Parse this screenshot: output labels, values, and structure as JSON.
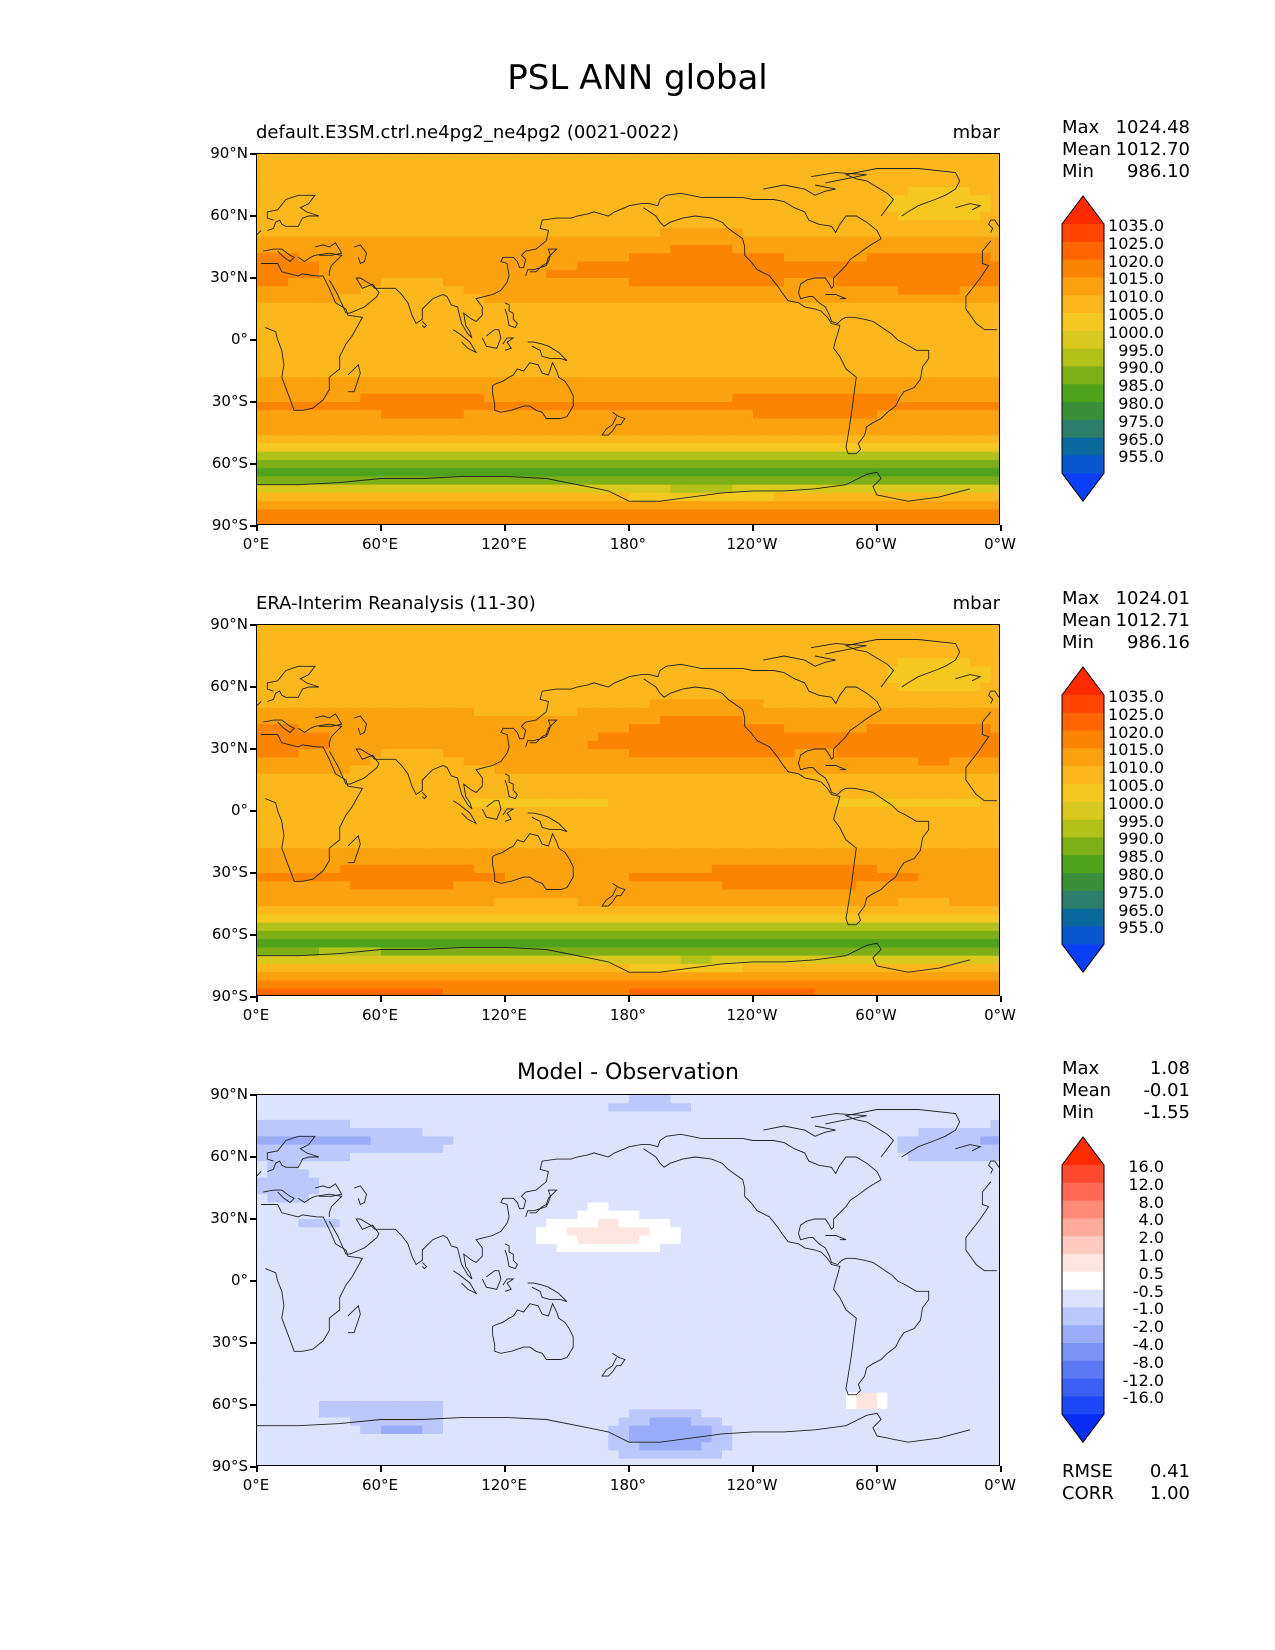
{
  "main_title": "PSL ANN global",
  "panels": [
    {
      "title": "default.E3SM.ctrl.ne4pg2_ne4pg2 (0021-0022)",
      "units": "mbar",
      "stats": {
        "max_label": "Max",
        "max": "1024.48",
        "mean_label": "Mean",
        "mean": "1012.70",
        "min_label": "Min",
        "min": "986.10"
      }
    },
    {
      "title": "ERA-Interim Reanalysis (11-30)",
      "units": "mbar",
      "stats": {
        "max_label": "Max",
        "max": "1024.01",
        "mean_label": "Mean",
        "mean": "1012.71",
        "min_label": "Min",
        "min": "986.16"
      }
    },
    {
      "title": "Model - Observation",
      "units": "",
      "stats": {
        "max_label": "Max",
        "max": "1.08",
        "mean_label": "Mean",
        "mean": "-0.01",
        "min_label": "Min",
        "min": "-1.55"
      },
      "extra": {
        "rmse_label": "RMSE",
        "rmse": "0.41",
        "corr_label": "CORR",
        "corr": "1.00"
      }
    }
  ],
  "y_ticks": [
    "90°N",
    "60°N",
    "30°N",
    "0°",
    "30°S",
    "60°S",
    "90°S"
  ],
  "x_ticks": [
    "0°E",
    "60°E",
    "120°E",
    "180°",
    "120°W",
    "60°W",
    "0°W"
  ],
  "colorbar_abs": {
    "labels": [
      "1035.0",
      "1025.0",
      "1020.0",
      "1015.0",
      "1010.0",
      "1005.0",
      "1000.0",
      "995.0",
      "990.0",
      "985.0",
      "980.0",
      "975.0",
      "965.0",
      "955.0"
    ],
    "colors": [
      "#ff2a00",
      "#ff4400",
      "#ff6600",
      "#fb8500",
      "#fca20e",
      "#fbb71c",
      "#f4c81f",
      "#d9c91e",
      "#b3c21a",
      "#7faf16",
      "#4ea31a",
      "#3a8f3a",
      "#2c7f6a",
      "#0a6aa0",
      "#0a58d0",
      "#0a40f5"
    ]
  },
  "colorbar_diff": {
    "labels": [
      "16.0",
      "12.0",
      "8.0",
      "4.0",
      "2.0",
      "1.0",
      "0.5",
      "-0.5",
      "-1.0",
      "-2.0",
      "-4.0",
      "-8.0",
      "-12.0",
      "-16.0"
    ],
    "colors": [
      "#ff2a00",
      "#ff4a30",
      "#ff6a55",
      "#ff8a78",
      "#ffab9c",
      "#ffcbc0",
      "#fde6e1",
      "#ffffff",
      "#dde3fc",
      "#bcc8fb",
      "#9aacf8",
      "#7b93f6",
      "#5c7af4",
      "#3d60f4",
      "#1e47f5",
      "#0a2df5"
    ]
  }
}
